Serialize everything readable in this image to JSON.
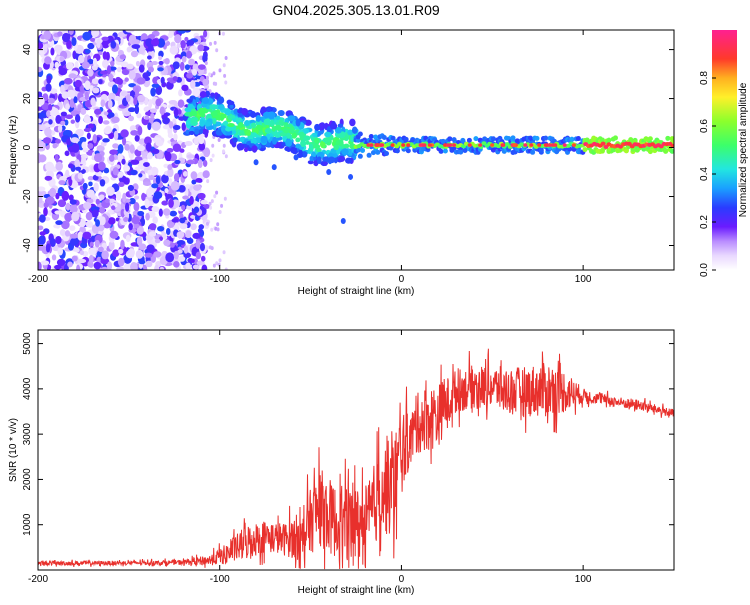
{
  "title": "GN04.2025.305.13.01.R09",
  "colors": {
    "snr_line": "#e8302c",
    "axis": "#000000",
    "spectrogram_cmap": [
      "#ffffff",
      "#e9d8ff",
      "#b98cff",
      "#7a2cff",
      "#4a10e8",
      "#2a3cff",
      "#1aa0ff",
      "#22e6e0",
      "#3cff6a",
      "#b4ff2c",
      "#fff02a",
      "#ffb020",
      "#ff3a2a",
      "#ff2090"
    ]
  },
  "chart_data": [
    {
      "type": "heatmap",
      "title": "",
      "xlabel": "Height of straight line (km)",
      "ylabel": "Frequency (Hz)",
      "xlim": [
        -200,
        150
      ],
      "ylim": [
        -50,
        48
      ],
      "xticks": [
        -200,
        -100,
        0,
        100
      ],
      "yticks": [
        -40,
        -20,
        0,
        20,
        40
      ],
      "colorbar": {
        "label": "Normalized spectral amplitude",
        "range": [
          0,
          1
        ],
        "ticks": [
          "0.0",
          "0.2",
          "0.4",
          "0.6",
          "0.8"
        ]
      },
      "description_bands": [
        {
          "x_range": [
            -200,
            -108
          ],
          "behavior": "broadband noise, all frequencies, amplitude ~0.05-0.25"
        },
        {
          "x_range": [
            -118,
            -25
          ],
          "freq_trend": "decreasing from ~14 Hz to ~0 Hz with scatter, amplitude ~0.2-0.5"
        },
        {
          "x_range": [
            -25,
            100
          ],
          "freq_center": 1,
          "amplitude": "~0.3-0.6"
        },
        {
          "x_range": [
            100,
            150
          ],
          "freq_center": 1,
          "amplitude": "~0.8-1.0"
        }
      ]
    },
    {
      "type": "line",
      "title": "",
      "xlabel": "Height of straight line (km)",
      "ylabel": "SNR (10 * v/v)",
      "xlim": [
        -200,
        150
      ],
      "ylim": [
        0,
        5300
      ],
      "xticks": [
        -200,
        -100,
        0,
        100
      ],
      "yticks": [
        1000,
        2000,
        3000,
        4000,
        5000
      ],
      "series": [
        {
          "name": "SNR",
          "x": [
            -200,
            -180,
            -160,
            -140,
            -120,
            -105,
            -95,
            -85,
            -75,
            -65,
            -55,
            -45,
            -35,
            -25,
            -18,
            -12,
            -5,
            0,
            5,
            10,
            15,
            20,
            25,
            30,
            40,
            50,
            60,
            70,
            80,
            90,
            100,
            110,
            120,
            130,
            140,
            150
          ],
          "y": [
            150,
            150,
            155,
            160,
            170,
            220,
            380,
            620,
            750,
            680,
            750,
            1400,
            1000,
            1000,
            1000,
            1800,
            1800,
            2600,
            2900,
            3300,
            3350,
            3400,
            3700,
            3950,
            4050,
            4050,
            3950,
            3950,
            4000,
            3950,
            3850,
            3780,
            3700,
            3650,
            3550,
            3450
          ],
          "noise_amplitude": [
            60,
            60,
            60,
            60,
            70,
            150,
            300,
            500,
            450,
            450,
            700,
            1100,
            1000,
            1100,
            1200,
            1200,
            1400,
            1200,
            700,
            900,
            900,
            900,
            700,
            600,
            600,
            600,
            650,
            700,
            800,
            600,
            200,
            150,
            150,
            150,
            130,
            120
          ]
        }
      ]
    }
  ]
}
